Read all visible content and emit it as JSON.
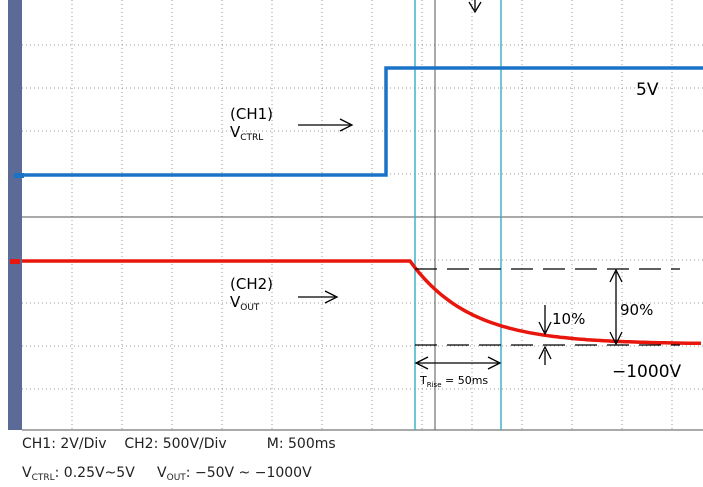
{
  "channel1": {
    "name": "(CH1)",
    "symbol": "V",
    "subscript": "CTRL",
    "level": "5V"
  },
  "channel2": {
    "name": "(CH2)",
    "symbol": "V",
    "subscript": "OUT",
    "level": "−1000V"
  },
  "annotations": {
    "low_percent": "10%",
    "high_percent": "90%",
    "rise_symbol": "T",
    "rise_subscript": "Rise",
    "rise_value": " = 50ms"
  },
  "footer": {
    "line1": [
      "CH1: 2V/Div",
      "CH2: 500V/Div",
      "M: 500ms"
    ],
    "line2": {
      "ctrl_symbol": "V",
      "ctrl_subscript": "CTRL",
      "ctrl_range": ": 0.25V~5V",
      "out_symbol": "V",
      "out_subscript": "OUT",
      "out_range": ": −50V ~ −1000V"
    }
  }
}
